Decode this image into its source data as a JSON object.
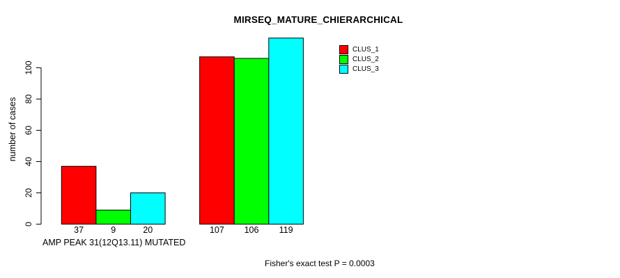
{
  "figure": {
    "background": "#ffffff",
    "text_color": "#000000"
  },
  "chart_data": {
    "type": "bar",
    "title": "MIRSEQ_MATURE_CHIERARCHICAL",
    "xlabel": "AMP PEAK 31(12Q13.11) MUTATED",
    "ylabel": "number of cases",
    "annotation": "Fisher's exact test P = 0.0003",
    "series": [
      {
        "name": "CLUS_1",
        "color": "#ff0000",
        "values": [
          37,
          107
        ]
      },
      {
        "name": "CLUS_2",
        "color": "#00ff00",
        "values": [
          9,
          106
        ]
      },
      {
        "name": "CLUS_3",
        "color": "#00ffff",
        "values": [
          20,
          119
        ]
      }
    ],
    "groups": 2,
    "bar_value_labels": [
      [
        37,
        9,
        20
      ],
      [
        107,
        106,
        119
      ]
    ],
    "yticks": [
      0,
      20,
      40,
      60,
      80,
      100
    ],
    "ylim": [
      0,
      119
    ],
    "grid": false,
    "legend_position": "top-right",
    "bar_border_color": "#000000",
    "axis_color": "#000000"
  }
}
